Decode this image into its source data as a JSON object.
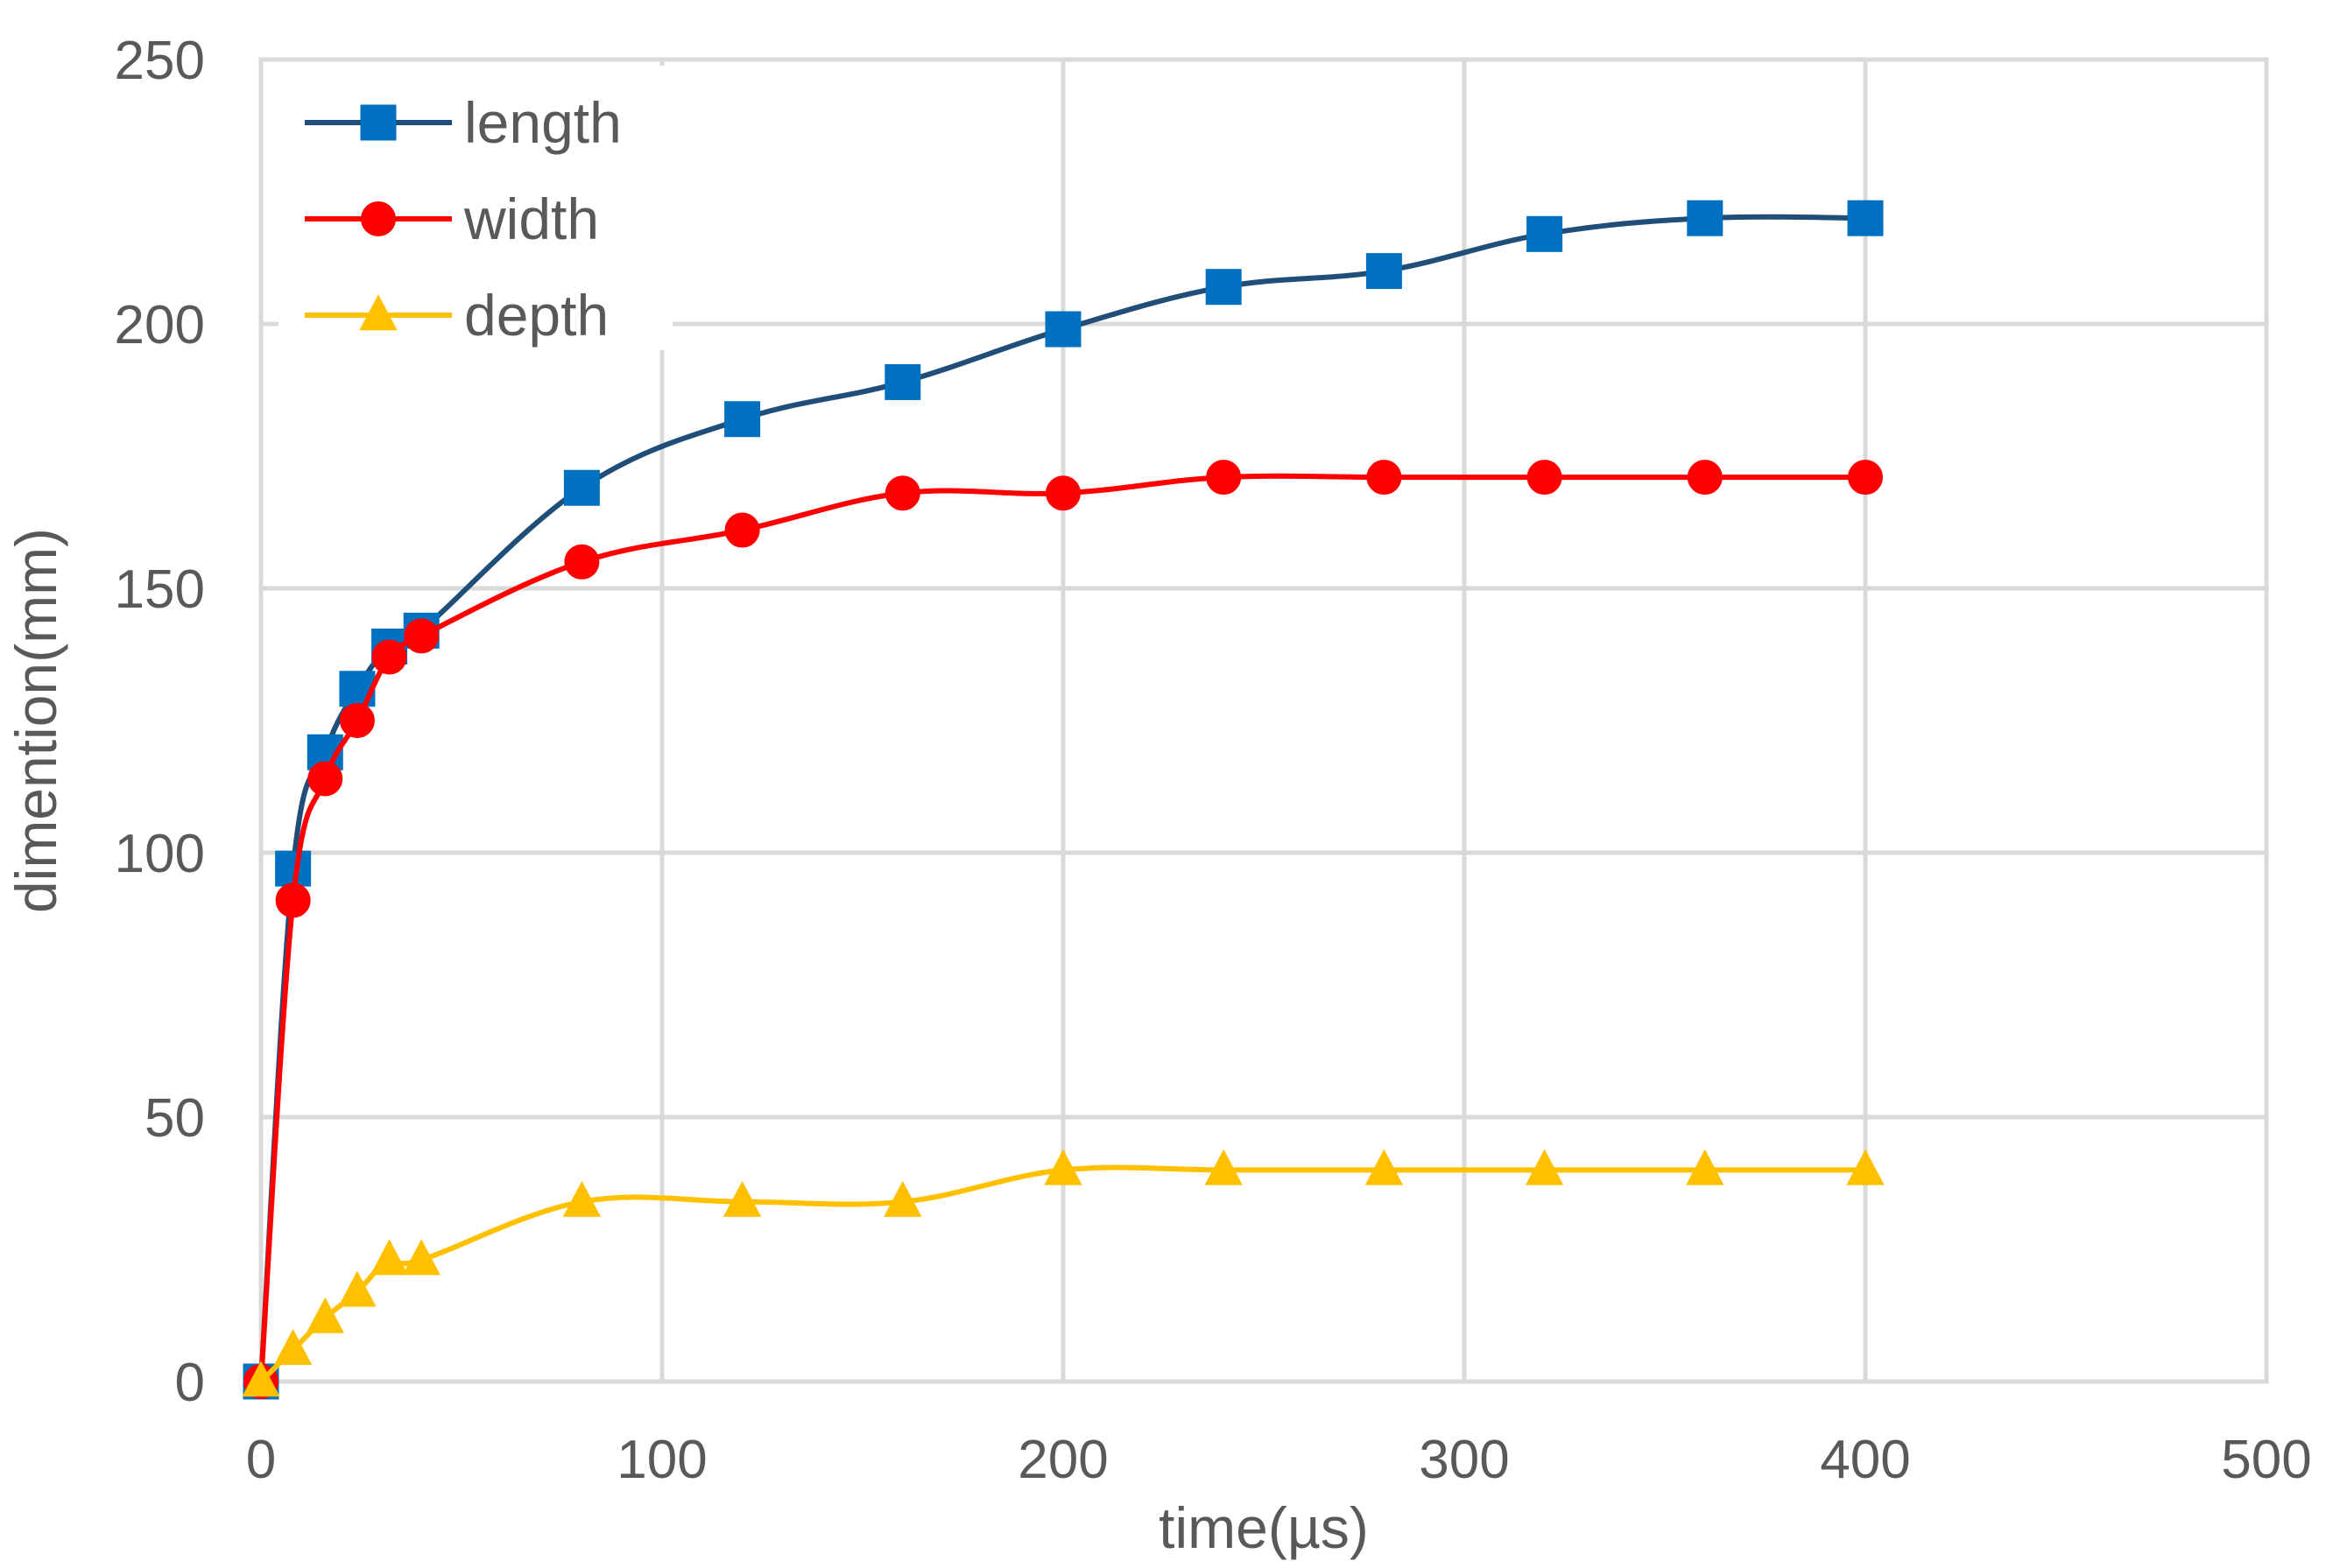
{
  "chart_data": {
    "type": "line",
    "title": "",
    "xlabel": "time(µs)",
    "ylabel": "dimention(mm)",
    "xlim": [
      0,
      500
    ],
    "ylim": [
      0,
      250
    ],
    "xticks": [
      0,
      100,
      200,
      300,
      400,
      500
    ],
    "yticks": [
      0,
      50,
      100,
      150,
      200,
      250
    ],
    "xtick_labels": [
      "0",
      "100",
      "200",
      "300",
      "400",
      "500"
    ],
    "ytick_labels": [
      "0",
      "50",
      "100",
      "150",
      "200",
      "250"
    ],
    "grid": true,
    "legend_position": "top-left",
    "x": [
      0,
      8,
      16,
      24,
      32,
      40,
      80,
      120,
      160,
      200,
      240,
      280,
      320,
      360,
      400
    ],
    "series": [
      {
        "name": "length",
        "marker": "square",
        "line_color": "#1f4e79",
        "marker_color": "#0070c0",
        "values": [
          0,
          97,
          119,
          131,
          139,
          142,
          169,
          182,
          189,
          199,
          207,
          210,
          217,
          220,
          220
        ]
      },
      {
        "name": "width",
        "marker": "circle",
        "line_color": "#ff0000",
        "marker_color": "#ff0000",
        "values": [
          0,
          91,
          114,
          125,
          137,
          141,
          155,
          161,
          168,
          168,
          171,
          171,
          171,
          171,
          171
        ]
      },
      {
        "name": "depth",
        "marker": "triangle",
        "line_color": "#ffc000",
        "marker_color": "#ffc000",
        "values": [
          0,
          6,
          12,
          17,
          23,
          23,
          34,
          34,
          34,
          40,
          40,
          40,
          40,
          40,
          40
        ]
      }
    ]
  }
}
